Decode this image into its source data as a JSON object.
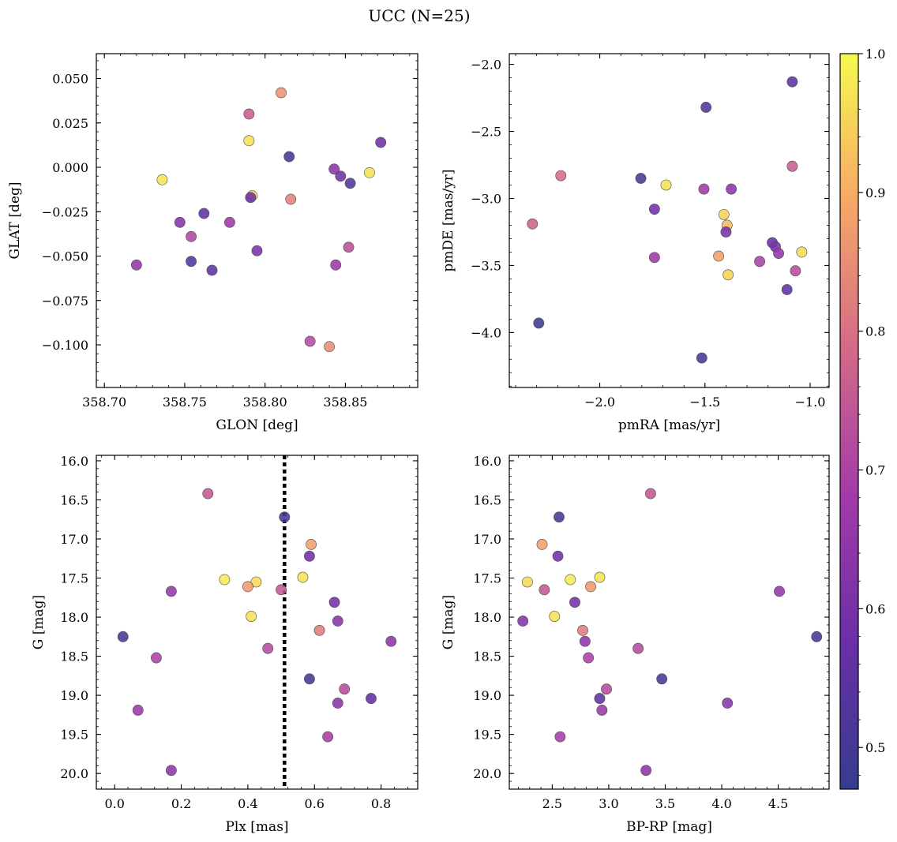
{
  "figure": {
    "title": "UCC (N=25)"
  },
  "colorbar": {
    "cmap": "plasma",
    "range": [
      0.47,
      1.0
    ],
    "ticks": [
      0.5,
      0.6,
      0.7,
      0.8,
      0.9,
      1.0
    ],
    "tick_labels": [
      "0.5",
      "0.6",
      "0.7",
      "0.8",
      "0.9",
      "1.0"
    ]
  },
  "chart_data": [
    {
      "type": "scatter",
      "xlabel": "GLON [deg]",
      "ylabel": "GLAT [deg]",
      "xlim": [
        358.695,
        358.895
      ],
      "ylim": [
        -0.124,
        0.064
      ],
      "xticks": [
        358.7,
        358.75,
        358.8,
        358.85
      ],
      "xtick_labels": [
        "358.70",
        "358.75",
        "358.80",
        "358.85"
      ],
      "yticks": [
        0.05,
        0.025,
        0.0,
        -0.025,
        -0.05,
        -0.075,
        -0.1
      ],
      "ytick_labels": [
        "0.050",
        "0.025",
        "0.000",
        "−0.025",
        "−0.050",
        "−0.075",
        "−0.100"
      ],
      "points": [
        {
          "x": 358.81,
          "y": 0.042,
          "c": 0.86
        },
        {
          "x": 358.79,
          "y": 0.03,
          "c": 0.76
        },
        {
          "x": 358.79,
          "y": 0.015,
          "c": 0.97
        },
        {
          "x": 358.872,
          "y": 0.014,
          "c": 0.59
        },
        {
          "x": 358.815,
          "y": 0.006,
          "c": 0.5
        },
        {
          "x": 358.843,
          "y": -0.001,
          "c": 0.63
        },
        {
          "x": 358.865,
          "y": -0.003,
          "c": 0.97
        },
        {
          "x": 358.847,
          "y": -0.005,
          "c": 0.59
        },
        {
          "x": 358.736,
          "y": -0.007,
          "c": 0.97
        },
        {
          "x": 358.853,
          "y": -0.009,
          "c": 0.52
        },
        {
          "x": 358.792,
          "y": -0.016,
          "c": 0.96
        },
        {
          "x": 358.791,
          "y": -0.017,
          "c": 0.58
        },
        {
          "x": 358.816,
          "y": -0.018,
          "c": 0.83
        },
        {
          "x": 358.762,
          "y": -0.026,
          "c": 0.56
        },
        {
          "x": 358.747,
          "y": -0.031,
          "c": 0.62
        },
        {
          "x": 358.778,
          "y": -0.031,
          "c": 0.67
        },
        {
          "x": 358.754,
          "y": -0.039,
          "c": 0.71
        },
        {
          "x": 358.852,
          "y": -0.045,
          "c": 0.73
        },
        {
          "x": 358.795,
          "y": -0.047,
          "c": 0.6
        },
        {
          "x": 358.754,
          "y": -0.053,
          "c": 0.52
        },
        {
          "x": 358.72,
          "y": -0.055,
          "c": 0.65
        },
        {
          "x": 358.844,
          "y": -0.055,
          "c": 0.67
        },
        {
          "x": 358.767,
          "y": -0.058,
          "c": 0.55
        },
        {
          "x": 358.828,
          "y": -0.098,
          "c": 0.72
        },
        {
          "x": 358.84,
          "y": -0.101,
          "c": 0.85
        }
      ]
    },
    {
      "type": "scatter",
      "xlabel": "pmRA [mas/yr]",
      "ylabel": "pmDE [mas/yr]",
      "xlim": [
        -2.43,
        -0.91
      ],
      "ylim": [
        -4.41,
        -1.92
      ],
      "xticks": [
        -2.0,
        -1.5,
        -1.0
      ],
      "xtick_labels": [
        "−2.0",
        "−1.5",
        "−1.0"
      ],
      "yticks": [
        -2.0,
        -2.5,
        -3.0,
        -3.5,
        -4.0
      ],
      "ytick_labels": [
        "−2.0",
        "−2.5",
        "−3.0",
        "−3.5",
        "−4.0"
      ],
      "points": [
        {
          "x": -1.085,
          "y": -2.13,
          "c": 0.55
        },
        {
          "x": -1.495,
          "y": -2.32,
          "c": 0.52
        },
        {
          "x": -1.085,
          "y": -2.76,
          "c": 0.76
        },
        {
          "x": -2.185,
          "y": -2.83,
          "c": 0.79
        },
        {
          "x": -1.805,
          "y": -2.85,
          "c": 0.5
        },
        {
          "x": -1.685,
          "y": -2.9,
          "c": 0.97
        },
        {
          "x": -1.505,
          "y": -2.93,
          "c": 0.68
        },
        {
          "x": -1.375,
          "y": -2.93,
          "c": 0.64
        },
        {
          "x": -1.74,
          "y": -3.08,
          "c": 0.59
        },
        {
          "x": -1.41,
          "y": -3.12,
          "c": 0.95
        },
        {
          "x": -2.32,
          "y": -3.19,
          "c": 0.77
        },
        {
          "x": -1.395,
          "y": -3.2,
          "c": 0.92
        },
        {
          "x": -1.4,
          "y": -3.25,
          "c": 0.6
        },
        {
          "x": -1.18,
          "y": -3.33,
          "c": 0.58
        },
        {
          "x": -1.165,
          "y": -3.36,
          "c": 0.6
        },
        {
          "x": -1.04,
          "y": -3.4,
          "c": 0.96
        },
        {
          "x": -1.15,
          "y": -3.41,
          "c": 0.65
        },
        {
          "x": -1.435,
          "y": -3.43,
          "c": 0.88
        },
        {
          "x": -1.74,
          "y": -3.44,
          "c": 0.67
        },
        {
          "x": -1.24,
          "y": -3.47,
          "c": 0.7
        },
        {
          "x": -1.07,
          "y": -3.54,
          "c": 0.72
        },
        {
          "x": -1.39,
          "y": -3.57,
          "c": 0.95
        },
        {
          "x": -1.11,
          "y": -3.68,
          "c": 0.55
        },
        {
          "x": -2.29,
          "y": -3.93,
          "c": 0.48
        },
        {
          "x": -1.515,
          "y": -4.19,
          "c": 0.5
        }
      ]
    },
    {
      "type": "scatter",
      "xlabel": "Plx [mas]",
      "ylabel": "G [mag]",
      "xlim": [
        -0.055,
        0.91
      ],
      "ylim": [
        20.2,
        15.93
      ],
      "xticks": [
        0.0,
        0.2,
        0.4,
        0.6,
        0.8
      ],
      "xtick_labels": [
        "0.0",
        "0.2",
        "0.4",
        "0.6",
        "0.8"
      ],
      "yticks": [
        16.0,
        16.5,
        17.0,
        17.5,
        18.0,
        18.5,
        19.0,
        19.5,
        20.0
      ],
      "ytick_labels": [
        "16.0",
        "16.5",
        "17.0",
        "17.5",
        "18.0",
        "18.5",
        "19.0",
        "19.5",
        "20.0"
      ],
      "vline": 0.51,
      "points": [
        {
          "x": 0.28,
          "y": 16.42,
          "c": 0.75
        },
        {
          "x": 0.51,
          "y": 16.72,
          "c": 0.5
        },
        {
          "x": 0.59,
          "y": 17.07,
          "c": 0.88
        },
        {
          "x": 0.585,
          "y": 17.22,
          "c": 0.59
        },
        {
          "x": 0.565,
          "y": 17.49,
          "c": 0.97
        },
        {
          "x": 0.33,
          "y": 17.52,
          "c": 0.98
        },
        {
          "x": 0.425,
          "y": 17.55,
          "c": 0.96
        },
        {
          "x": 0.4,
          "y": 17.61,
          "c": 0.87
        },
        {
          "x": 0.5,
          "y": 17.65,
          "c": 0.75
        },
        {
          "x": 0.17,
          "y": 17.67,
          "c": 0.65
        },
        {
          "x": 0.66,
          "y": 17.81,
          "c": 0.59
        },
        {
          "x": 0.41,
          "y": 17.99,
          "c": 0.97
        },
        {
          "x": 0.67,
          "y": 18.05,
          "c": 0.62
        },
        {
          "x": 0.615,
          "y": 18.17,
          "c": 0.82
        },
        {
          "x": 0.025,
          "y": 18.25,
          "c": 0.5
        },
        {
          "x": 0.83,
          "y": 18.31,
          "c": 0.64
        },
        {
          "x": 0.46,
          "y": 18.4,
          "c": 0.72
        },
        {
          "x": 0.125,
          "y": 18.52,
          "c": 0.7
        },
        {
          "x": 0.585,
          "y": 18.79,
          "c": 0.5
        },
        {
          "x": 0.69,
          "y": 18.92,
          "c": 0.72
        },
        {
          "x": 0.77,
          "y": 19.04,
          "c": 0.56
        },
        {
          "x": 0.67,
          "y": 19.1,
          "c": 0.63
        },
        {
          "x": 0.07,
          "y": 19.19,
          "c": 0.67
        },
        {
          "x": 0.64,
          "y": 19.53,
          "c": 0.69
        },
        {
          "x": 0.17,
          "y": 19.96,
          "c": 0.64
        }
      ]
    },
    {
      "type": "scatter",
      "xlabel": "BP-RP [mag]",
      "ylabel": "G [mag]",
      "xlim": [
        2.12,
        4.95
      ],
      "ylim": [
        20.2,
        15.93
      ],
      "xticks": [
        2.5,
        3.0,
        3.5,
        4.0,
        4.5
      ],
      "xtick_labels": [
        "2.5",
        "3.0",
        "3.5",
        "4.0",
        "4.5"
      ],
      "yticks": [
        16.0,
        16.5,
        17.0,
        17.5,
        18.0,
        18.5,
        19.0,
        19.5,
        20.0
      ],
      "ytick_labels": [
        "16.0",
        "16.5",
        "17.0",
        "17.5",
        "18.0",
        "18.5",
        "19.0",
        "19.5",
        "20.0"
      ],
      "points": [
        {
          "x": 3.37,
          "y": 16.42,
          "c": 0.75
        },
        {
          "x": 2.56,
          "y": 16.72,
          "c": 0.5
        },
        {
          "x": 2.41,
          "y": 17.07,
          "c": 0.88
        },
        {
          "x": 2.55,
          "y": 17.22,
          "c": 0.59
        },
        {
          "x": 2.92,
          "y": 17.49,
          "c": 0.97
        },
        {
          "x": 2.66,
          "y": 17.52,
          "c": 0.98
        },
        {
          "x": 2.28,
          "y": 17.55,
          "c": 0.96
        },
        {
          "x": 2.84,
          "y": 17.61,
          "c": 0.87
        },
        {
          "x": 2.43,
          "y": 17.65,
          "c": 0.75
        },
        {
          "x": 4.51,
          "y": 17.67,
          "c": 0.65
        },
        {
          "x": 2.7,
          "y": 17.81,
          "c": 0.59
        },
        {
          "x": 2.52,
          "y": 17.99,
          "c": 0.97
        },
        {
          "x": 2.24,
          "y": 18.05,
          "c": 0.62
        },
        {
          "x": 2.77,
          "y": 18.17,
          "c": 0.82
        },
        {
          "x": 4.84,
          "y": 18.25,
          "c": 0.5
        },
        {
          "x": 2.79,
          "y": 18.31,
          "c": 0.64
        },
        {
          "x": 3.26,
          "y": 18.4,
          "c": 0.72
        },
        {
          "x": 2.82,
          "y": 18.52,
          "c": 0.7
        },
        {
          "x": 3.47,
          "y": 18.79,
          "c": 0.5
        },
        {
          "x": 2.98,
          "y": 18.92,
          "c": 0.72
        },
        {
          "x": 2.92,
          "y": 19.04,
          "c": 0.56
        },
        {
          "x": 4.05,
          "y": 19.1,
          "c": 0.63
        },
        {
          "x": 2.94,
          "y": 19.19,
          "c": 0.67
        },
        {
          "x": 2.57,
          "y": 19.53,
          "c": 0.69
        },
        {
          "x": 3.33,
          "y": 19.96,
          "c": 0.64
        }
      ]
    }
  ]
}
